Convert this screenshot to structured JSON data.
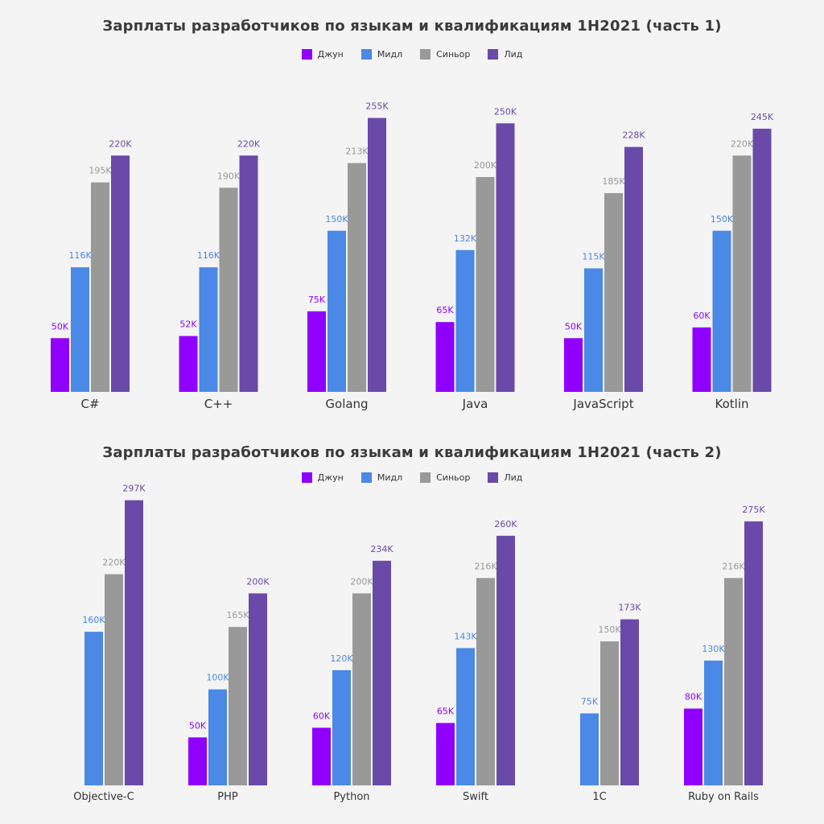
{
  "colors": {
    "junior": "#8f00ff",
    "middle": "#4a89e5",
    "senior": "#999999",
    "lead": "#6a4aa8",
    "background": "#f4f4f4",
    "axis_label": "#333333"
  },
  "chart_data": [
    {
      "type": "bar",
      "title": "Зарплаты разработчиков по языкам и квалификациям 1H2021 (часть 1)",
      "categories": [
        "C#",
        "C++",
        "Golang",
        "Java",
        "JavaScript",
        "Kotlin"
      ],
      "series": [
        {
          "name": "Джун",
          "color": "#8f00ff",
          "values": [
            50,
            52,
            75,
            65,
            50,
            60
          ],
          "labels": [
            "50K",
            "52K",
            "75K",
            "65K",
            "50K",
            "60K"
          ]
        },
        {
          "name": "Мидл",
          "color": "#4a89e5",
          "values": [
            116,
            116,
            150,
            132,
            115,
            150
          ],
          "labels": [
            "116K",
            "116K",
            "150K",
            "132K",
            "115K",
            "150K"
          ]
        },
        {
          "name": "Синьор",
          "color": "#999999",
          "values": [
            195,
            190,
            213,
            200,
            185,
            220
          ],
          "labels": [
            "195K",
            "190K",
            "213K",
            "200K",
            "185K",
            "220K"
          ]
        },
        {
          "name": "Лид",
          "color": "#6a4aa8",
          "values": [
            220,
            220,
            255,
            250,
            228,
            245
          ],
          "labels": [
            "220K",
            "220K",
            "255K",
            "250K",
            "228K",
            "245K"
          ]
        }
      ],
      "legend_position": "top-center",
      "grid": false
    },
    {
      "type": "bar",
      "title": "Зарплаты разработчиков по языкам и квалификациям 1H2021 (часть 2)",
      "categories": [
        "Objective-C",
        "PHP",
        "Python",
        "Swift",
        "1C",
        "Ruby on Rails"
      ],
      "series": [
        {
          "name": "Джун",
          "color": "#8f00ff",
          "values": [
            null,
            50,
            60,
            65,
            null,
            80
          ],
          "labels": [
            "",
            "50K",
            "60K",
            "65K",
            "",
            "80K"
          ]
        },
        {
          "name": "Мидл",
          "color": "#4a89e5",
          "values": [
            160,
            100,
            120,
            143,
            75,
            130
          ],
          "labels": [
            "160K",
            "100K",
            "120K",
            "143K",
            "75K",
            "130K"
          ]
        },
        {
          "name": "Синьор",
          "color": "#999999",
          "values": [
            220,
            165,
            200,
            216,
            150,
            216
          ],
          "labels": [
            "220K",
            "165K",
            "200K",
            "216K",
            "150K",
            "216K"
          ]
        },
        {
          "name": "Лид",
          "color": "#6a4aa8",
          "values": [
            297,
            200,
            234,
            260,
            173,
            275
          ],
          "labels": [
            "297K",
            "200K",
            "234K",
            "260K",
            "173K",
            "275K"
          ]
        }
      ],
      "legend_position": "top-center",
      "grid": false
    }
  ]
}
